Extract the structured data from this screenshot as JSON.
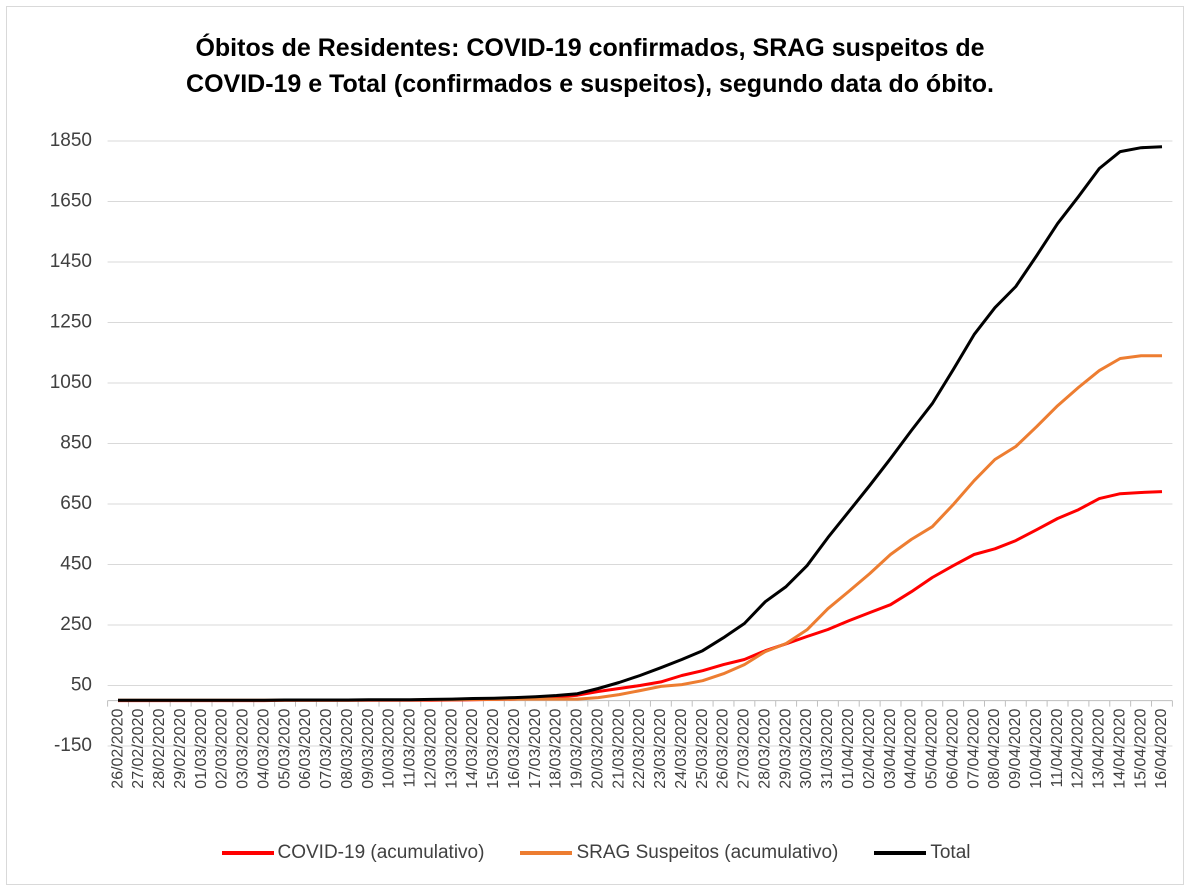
{
  "chart_data": {
    "type": "line",
    "title": "Óbitos de Residentes: COVID-19 confirmados, SRAG suspeitos de COVID-19 e Total (confirmados e suspeitos), segundo data do óbito.",
    "categories": [
      "26/02/2020",
      "27/02/2020",
      "28/02/2020",
      "29/02/2020",
      "01/03/2020",
      "02/03/2020",
      "03/03/2020",
      "04/03/2020",
      "05/03/2020",
      "06/03/2020",
      "07/03/2020",
      "08/03/2020",
      "09/03/2020",
      "10/03/2020",
      "11/03/2020",
      "12/03/2020",
      "13/03/2020",
      "14/03/2020",
      "15/03/2020",
      "16/03/2020",
      "17/03/2020",
      "18/03/2020",
      "19/03/2020",
      "20/03/2020",
      "21/03/2020",
      "22/03/2020",
      "23/03/2020",
      "24/03/2020",
      "25/03/2020",
      "26/03/2020",
      "27/03/2020",
      "28/03/2020",
      "29/03/2020",
      "30/03/2020",
      "31/03/2020",
      "01/04/2020",
      "02/04/2020",
      "03/04/2020",
      "04/04/2020",
      "05/04/2020",
      "06/04/2020",
      "07/04/2020",
      "08/04/2020",
      "09/04/2020",
      "10/04/2020",
      "11/04/2020",
      "12/04/2020",
      "13/04/2020",
      "14/04/2020",
      "15/04/2020",
      "16/04/2020"
    ],
    "series": [
      {
        "name": "COVID-19 (acumulativo)",
        "color": "#ff0000",
        "values": [
          0,
          0,
          0,
          0,
          0,
          0,
          0,
          0,
          1,
          1,
          1,
          1,
          1,
          1,
          1,
          1,
          2,
          3,
          4,
          5,
          8,
          12,
          18,
          30,
          40,
          50,
          62,
          83,
          99,
          119,
          136,
          165,
          188,
          212,
          235,
          264,
          291,
          317,
          360,
          407,
          446,
          483,
          502,
          529,
          565,
          602,
          631,
          668,
          684,
          688,
          691
        ]
      },
      {
        "name": "SRAG Suspeitos (acumulativo)",
        "color": "#ed7d31",
        "values": [
          1,
          1,
          1,
          1,
          1,
          1,
          1,
          1,
          1,
          1,
          1,
          1,
          2,
          2,
          2,
          3,
          3,
          4,
          4,
          5,
          5,
          5,
          5,
          10,
          20,
          33,
          47,
          53,
          66,
          89,
          119,
          162,
          189,
          234,
          304,
          361,
          420,
          483,
          533,
          575,
          648,
          727,
          797,
          840,
          906,
          975,
          1035,
          1091,
          1131,
          1140,
          1140
        ]
      },
      {
        "name": "Total",
        "color": "#000000",
        "values": [
          1,
          1,
          1,
          1,
          1,
          1,
          1,
          1,
          2,
          2,
          2,
          2,
          3,
          3,
          3,
          4,
          5,
          7,
          8,
          10,
          13,
          17,
          23,
          40,
          60,
          83,
          109,
          136,
          165,
          208,
          255,
          327,
          377,
          446,
          539,
          625,
          711,
          800,
          893,
          982,
          1094,
          1210,
          1299,
          1369,
          1471,
          1577,
          1666,
          1759,
          1815,
          1828,
          1831
        ]
      }
    ],
    "ylim": [
      -150,
      1850
    ],
    "yticks": [
      -150,
      50,
      250,
      450,
      650,
      850,
      1050,
      1250,
      1450,
      1650,
      1850
    ],
    "grid": true
  }
}
